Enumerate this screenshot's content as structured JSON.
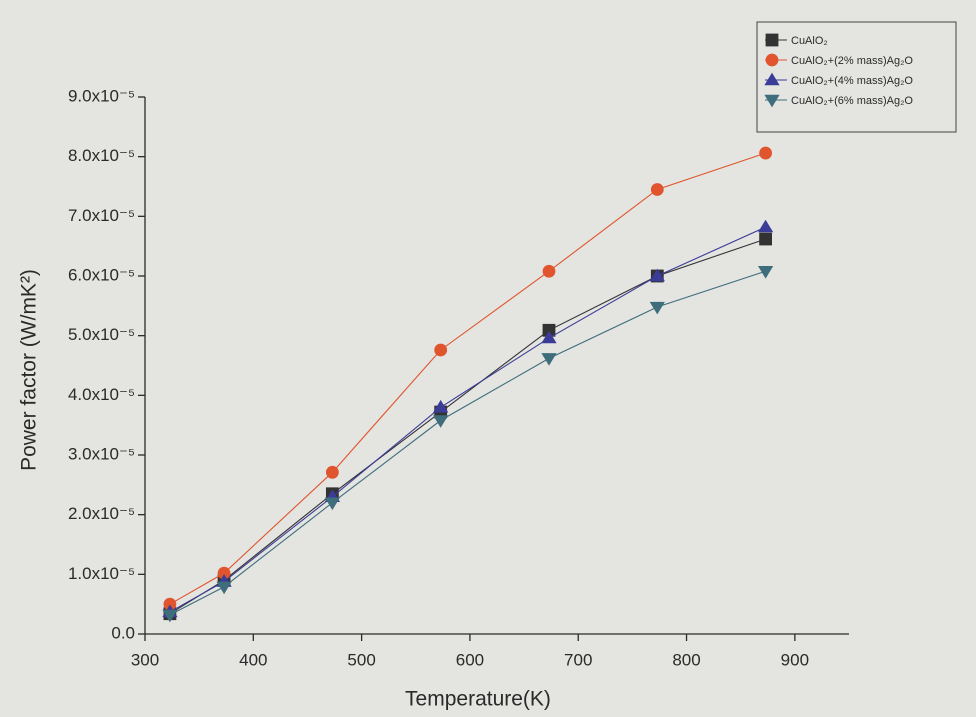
{
  "chart_data": {
    "type": "line",
    "xlabel": "Temperature(K)",
    "ylabel": "Power factor (W/mK²)",
    "x": [
      323,
      373,
      473,
      573,
      673,
      773,
      873
    ],
    "xlim": [
      300,
      950
    ],
    "xticks": [
      300,
      400,
      500,
      600,
      700,
      800,
      900
    ],
    "ylim": [
      0,
      9e-05
    ],
    "yticks": [
      {
        "value": 0,
        "label": "0.0"
      },
      {
        "value": 1e-05,
        "label": "1.0x10⁻⁵"
      },
      {
        "value": 2e-05,
        "label": "2.0x10⁻⁵"
      },
      {
        "value": 3e-05,
        "label": "3.0x10⁻⁵"
      },
      {
        "value": 4e-05,
        "label": "4.0x10⁻⁵"
      },
      {
        "value": 5e-05,
        "label": "5.0x10⁻⁵"
      },
      {
        "value": 6e-05,
        "label": "6.0x10⁻⁵"
      },
      {
        "value": 7e-05,
        "label": "7.0x10⁻⁵"
      },
      {
        "value": 8e-05,
        "label": "8.0x10⁻⁵"
      },
      {
        "value": 9e-05,
        "label": "9.0x10⁻⁵"
      }
    ],
    "legend": "upper right",
    "series": [
      {
        "name": "CuAlO₂",
        "color": "#333333",
        "marker": "square",
        "values": [
          3.4e-06,
          9e-06,
          2.35e-05,
          3.72e-05,
          5.09e-05,
          6e-05,
          6.62e-05
        ]
      },
      {
        "name": "CuAlO₂+(2% mass)Ag₂O",
        "color": "#e0552d",
        "marker": "circle",
        "values": [
          5e-06,
          1.02e-05,
          2.71e-05,
          4.76e-05,
          6.08e-05,
          7.45e-05,
          8.06e-05
        ]
      },
      {
        "name": "CuAlO₂+(4% mass)Ag₂O",
        "color": "#3b3c98",
        "marker": "triangle-up",
        "values": [
          3.7e-06,
          8.8e-06,
          2.3e-05,
          3.8e-05,
          4.96e-05,
          6e-05,
          6.82e-05
        ]
      },
      {
        "name": "CuAlO₂+(6% mass)Ag₂O",
        "color": "#3e6d7c",
        "marker": "triangle-down",
        "values": [
          3.2e-06,
          7.9e-06,
          2.2e-05,
          3.58e-05,
          4.62e-05,
          5.48e-05,
          6.08e-05
        ]
      }
    ]
  }
}
